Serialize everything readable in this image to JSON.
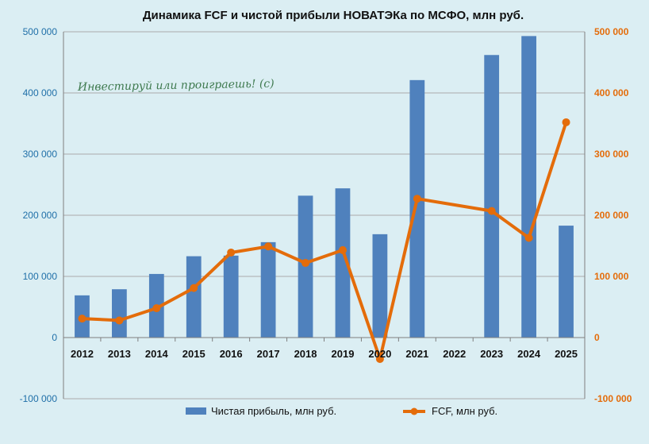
{
  "chart_data": {
    "type": "bar",
    "title": "Динамика FCF и чистой прибыли НОВАТЭКа по МСФО, млн руб.",
    "categories": [
      "2012",
      "2013",
      "2014",
      "2015",
      "2016",
      "2017",
      "2018",
      "2019",
      "2020",
      "2021",
      "2022",
      "2023",
      "2024",
      "2025"
    ],
    "series": [
      {
        "name": "Чистая прибыль, млн руб.",
        "type": "bar",
        "axis": "left",
        "color": "#4f81bd",
        "values": [
          69000,
          79000,
          104000,
          133000,
          134000,
          156000,
          232000,
          244000,
          169000,
          421000,
          null,
          462000,
          493000,
          183000
        ]
      },
      {
        "name": "FCF, млн руб.",
        "type": "line",
        "axis": "right",
        "color": "#e46c0a",
        "values": [
          31000,
          28000,
          48000,
          81000,
          139000,
          149000,
          122000,
          143000,
          -35000,
          227000,
          null,
          207000,
          163000,
          352000
        ]
      }
    ],
    "ylim": [
      -100000,
      500000
    ],
    "y2lim": [
      -100000,
      500000
    ],
    "y_ticks": [
      "-100 000",
      "0",
      "100 000",
      "200 000",
      "300 000",
      "400 000",
      "500 000"
    ],
    "y2_ticks": [
      "-100 000",
      "0",
      "100 000",
      "200 000",
      "300 000",
      "400 000",
      "500 000"
    ],
    "grid": true,
    "legend": "bottom",
    "watermark": "Инвестируй или проиграешь! (с)"
  }
}
